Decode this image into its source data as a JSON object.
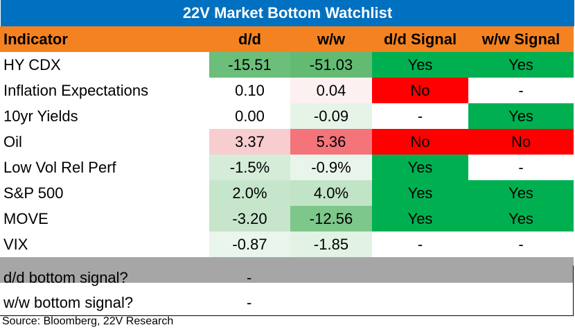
{
  "title": "22V Market Bottom Watchlist",
  "headers": [
    "Indicator",
    "d/d",
    "w/w",
    "d/d Signal",
    "w/w Signal"
  ],
  "colors": {
    "title_bg": "#0070c0",
    "header_bg": "#f58220",
    "signal_yes": "#00b050",
    "signal_no": "#ff0000",
    "separator": "#a6a6a6"
  },
  "rows": [
    {
      "indicator": "HY CDX",
      "dd": "-15.51",
      "ww": "-51.03",
      "dd_signal": "Yes",
      "ww_signal": "Yes",
      "dd_bg": "#6bbf7a",
      "ww_bg": "#63bb73"
    },
    {
      "indicator": "Inflation Expectations",
      "dd": "0.10",
      "ww": "0.04",
      "dd_signal": "No",
      "ww_signal": "-",
      "dd_bg": "#ffffff",
      "ww_bg": "#fdf0f0"
    },
    {
      "indicator": "10yr Yields",
      "dd": "0.00",
      "ww": "-0.09",
      "dd_signal": "-",
      "ww_signal": "Yes",
      "dd_bg": "#ffffff",
      "ww_bg": "#e6f4e8"
    },
    {
      "indicator": "Oil",
      "dd": "3.37",
      "ww": "5.36",
      "dd_signal": "No",
      "ww_signal": "No",
      "dd_bg": "#f8cdd0",
      "ww_bg": "#f4747a"
    },
    {
      "indicator": "Low Vol Rel Perf",
      "dd": "-1.5%",
      "ww": "-0.9%",
      "dd_signal": "Yes",
      "ww_signal": "-",
      "dd_bg": "#d5ecd9",
      "ww_bg": "#e9f5eb"
    },
    {
      "indicator": "S&P 500",
      "dd": "2.0%",
      "ww": "4.0%",
      "dd_signal": "Yes",
      "ww_signal": "Yes",
      "dd_bg": "#c6e6cc",
      "ww_bg": "#c1e3c6"
    },
    {
      "indicator": "MOVE",
      "dd": "-3.20",
      "ww": "-12.56",
      "dd_signal": "Yes",
      "ww_signal": "Yes",
      "dd_bg": "#c6e5cb",
      "ww_bg": "#7dc78a"
    },
    {
      "indicator": "VIX",
      "dd": "-0.87",
      "ww": "-1.85",
      "dd_signal": "-",
      "ww_signal": "-",
      "dd_bg": "#eaf5ec",
      "ww_bg": "#e2f2e5"
    }
  ],
  "summary": [
    {
      "label": "d/d bottom signal?",
      "value": "-"
    },
    {
      "label": "w/w bottom signal?",
      "value": "-"
    }
  ],
  "source": "Source: Bloomberg, 22V Research"
}
